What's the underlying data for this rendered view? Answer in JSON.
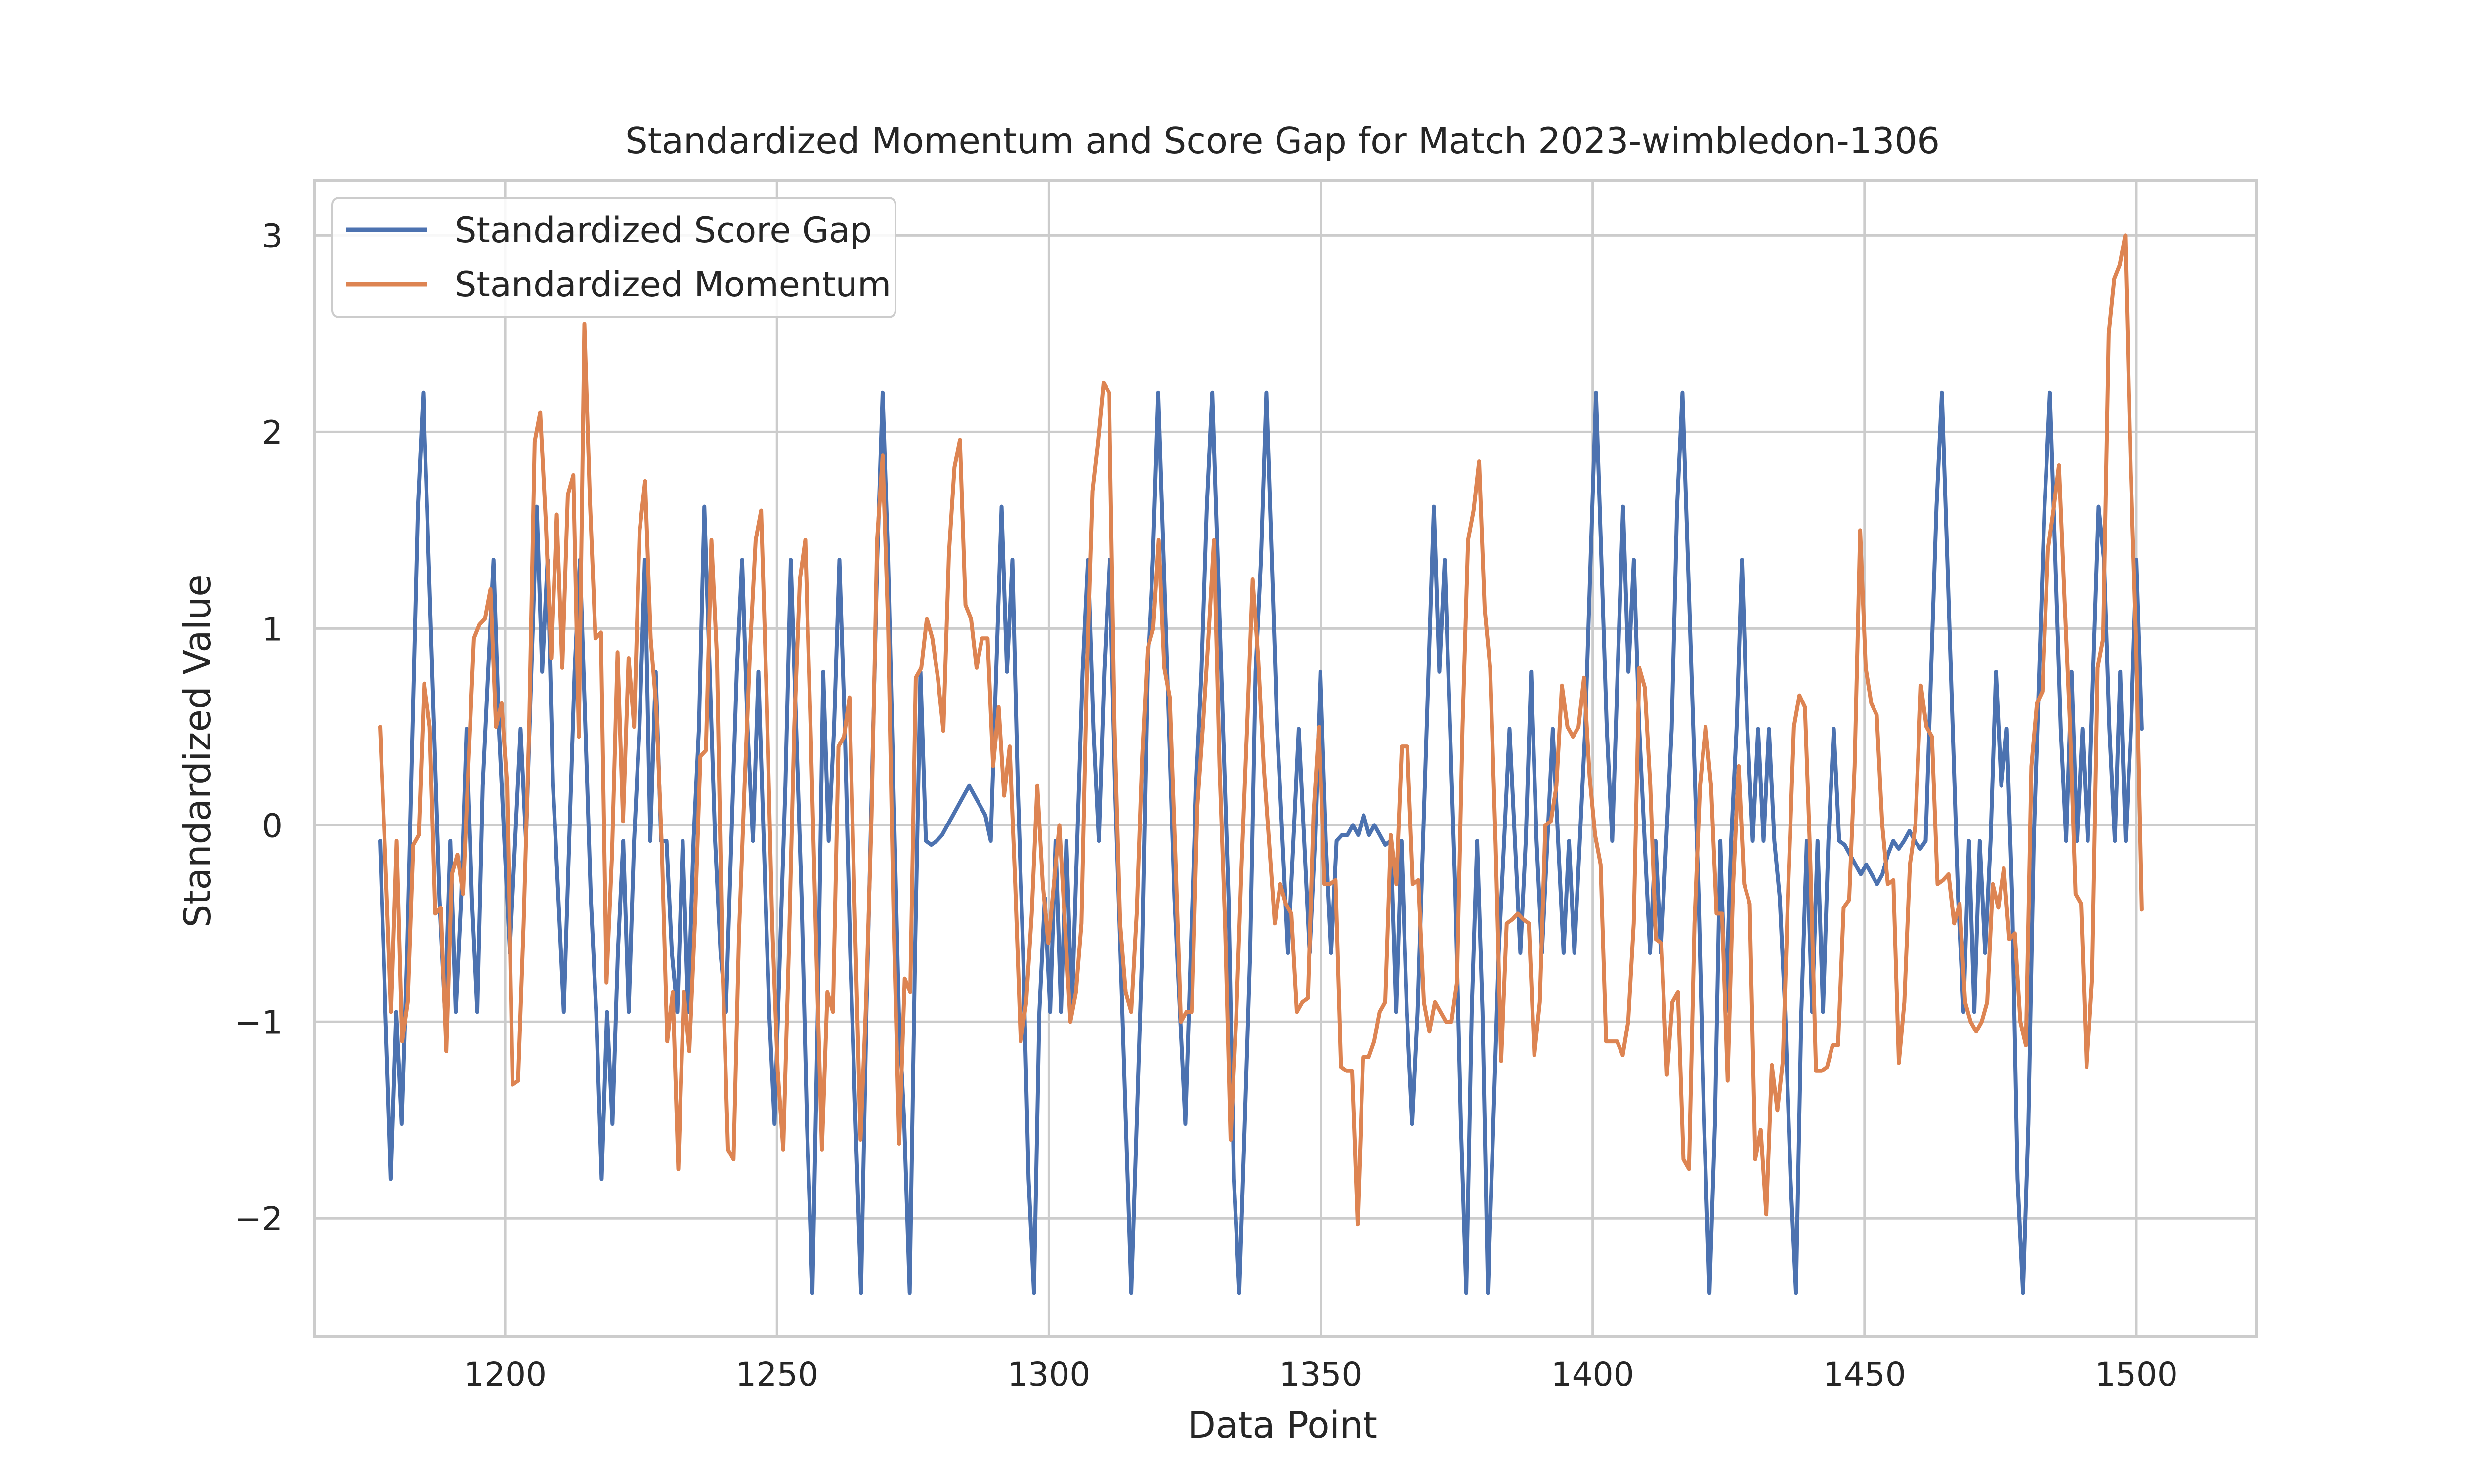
{
  "chart_data": {
    "type": "line",
    "title": "Standardized Momentum and Score Gap for Match 2023-wimbledon-1306",
    "xlabel": "Data Point",
    "ylabel": "Standardized Value",
    "xlim": [
      1165,
      1522
    ],
    "ylim": [
      -2.6,
      3.28
    ],
    "xticks": [
      1200,
      1250,
      1300,
      1350,
      1400,
      1450,
      1500
    ],
    "xtick_labels": [
      "1200",
      "1250",
      "1300",
      "1350",
      "1400",
      "1450",
      "1500"
    ],
    "yticks": [
      -2,
      -1,
      0,
      1,
      2,
      3
    ],
    "ytick_labels": [
      "−2",
      "−1",
      "0",
      "1",
      "2",
      "3"
    ],
    "grid": true,
    "legend_position": "top-left",
    "x_start": 1177,
    "x_end": 1501,
    "series": [
      {
        "name": "Standardized Score Gap",
        "color": "#4c72b0",
        "values": [
          -0.08,
          -0.95,
          -1.8,
          -0.95,
          -1.52,
          -0.65,
          0.49,
          1.62,
          2.2,
          1.35,
          0.49,
          -0.37,
          -0.95,
          -0.08,
          -0.95,
          -0.37,
          0.49,
          -0.37,
          -0.95,
          0.2,
          0.78,
          1.35,
          0.49,
          -0.08,
          -0.65,
          -0.08,
          0.49,
          -0.08,
          0.78,
          1.62,
          0.78,
          1.35,
          0.2,
          -0.37,
          -0.95,
          -0.08,
          0.78,
          1.35,
          0.49,
          -0.37,
          -0.95,
          -1.8,
          -0.95,
          -1.52,
          -0.65,
          -0.08,
          -0.95,
          -0.08,
          0.49,
          1.35,
          -0.08,
          0.78,
          -0.08,
          -0.08,
          -0.65,
          -0.95,
          -0.08,
          -0.95,
          -0.08,
          0.49,
          1.62,
          0.78,
          -0.08,
          -0.65,
          -0.95,
          -0.08,
          0.78,
          1.35,
          0.49,
          -0.08,
          0.78,
          -0.08,
          -0.95,
          -1.52,
          -0.65,
          0.2,
          1.35,
          0.49,
          -0.37,
          -1.52,
          -2.38,
          -0.95,
          0.78,
          -0.08,
          0.49,
          1.35,
          0.49,
          -0.65,
          -1.52,
          -2.38,
          -0.95,
          0.2,
          1.35,
          2.2,
          1.35,
          0.2,
          -0.95,
          -1.52,
          -2.38,
          -0.65,
          0.78,
          -0.08,
          -0.1,
          -0.08,
          -0.05,
          0.0,
          0.05,
          0.1,
          0.15,
          0.2,
          0.15,
          0.1,
          0.05,
          -0.08,
          0.78,
          1.62,
          0.78,
          1.35,
          0.2,
          -0.65,
          -1.8,
          -2.38,
          -0.95,
          -0.37,
          -0.95,
          -0.08,
          -0.95,
          -0.08,
          -0.95,
          -0.08,
          0.78,
          1.35,
          0.49,
          -0.08,
          0.78,
          1.35,
          0.2,
          -0.65,
          -1.52,
          -2.38,
          -1.52,
          -0.65,
          0.78,
          1.35,
          2.2,
          1.35,
          0.49,
          -0.37,
          -0.95,
          -1.52,
          -0.65,
          0.2,
          0.78,
          1.62,
          2.2,
          1.35,
          0.49,
          -0.37,
          -1.8,
          -2.38,
          -1.52,
          -0.65,
          0.78,
          1.35,
          2.2,
          1.35,
          0.49,
          -0.08,
          -0.65,
          -0.08,
          0.49,
          -0.08,
          -0.65,
          -0.08,
          0.78,
          -0.08,
          -0.65,
          -0.08,
          -0.05,
          -0.05,
          0.0,
          -0.05,
          0.05,
          -0.05,
          0.0,
          -0.05,
          -0.1,
          -0.08,
          -0.95,
          -0.08,
          -0.95,
          -1.52,
          -0.95,
          -0.08,
          0.78,
          1.62,
          0.78,
          1.35,
          0.49,
          -0.37,
          -1.52,
          -2.38,
          -0.95,
          -0.08,
          -0.95,
          -2.38,
          -1.52,
          -0.65,
          -0.08,
          0.49,
          -0.08,
          -0.65,
          -0.08,
          0.78,
          -0.08,
          -0.65,
          -0.08,
          0.49,
          -0.08,
          -0.65,
          -0.08,
          -0.65,
          -0.08,
          0.49,
          1.35,
          2.2,
          1.35,
          0.49,
          -0.08,
          0.78,
          1.62,
          0.78,
          1.35,
          0.49,
          -0.08,
          -0.65,
          -0.08,
          -0.65,
          -0.08,
          0.49,
          1.62,
          2.2,
          1.35,
          0.49,
          -0.37,
          -1.52,
          -2.38,
          -1.52,
          -0.08,
          -0.95,
          -0.08,
          0.49,
          1.35,
          0.49,
          -0.08,
          0.49,
          -0.08,
          0.49,
          -0.08,
          -0.37,
          -0.95,
          -1.8,
          -2.38,
          -0.95,
          -0.08,
          -0.95,
          -0.08,
          -0.95,
          -0.08,
          0.49,
          -0.08,
          -0.1,
          -0.15,
          -0.2,
          -0.25,
          -0.2,
          -0.25,
          -0.3,
          -0.25,
          -0.15,
          -0.08,
          -0.12,
          -0.08,
          -0.03,
          -0.08,
          -0.12,
          -0.08,
          0.78,
          1.62,
          2.2,
          1.35,
          0.49,
          -0.37,
          -0.95,
          -0.08,
          -0.95,
          -0.08,
          -0.65,
          -0.08,
          0.78,
          0.2,
          0.49,
          -0.37,
          -1.8,
          -2.38,
          -1.52,
          -0.08,
          0.78,
          1.62,
          2.2,
          1.35,
          0.49,
          -0.08,
          0.78,
          -0.08,
          0.49,
          -0.08,
          0.78,
          1.62,
          1.35,
          0.49,
          -0.08,
          0.78,
          -0.08,
          0.49,
          1.35,
          0.49
        ]
      },
      {
        "name": "Standardized Momentum",
        "color": "#dd8452",
        "values": [
          0.5,
          -0.2,
          -0.95,
          -0.08,
          -1.1,
          -0.9,
          -0.1,
          -0.05,
          0.72,
          0.5,
          -0.45,
          -0.42,
          -1.15,
          -0.25,
          -0.15,
          -0.35,
          0.3,
          0.95,
          1.02,
          1.05,
          1.2,
          0.5,
          0.62,
          0.2,
          -1.32,
          -1.3,
          -0.5,
          0.5,
          1.95,
          2.1,
          1.55,
          0.85,
          1.58,
          0.8,
          1.68,
          1.78,
          0.45,
          2.55,
          1.65,
          0.95,
          0.98,
          -0.8,
          -0.15,
          0.88,
          0.02,
          0.85,
          0.5,
          1.5,
          1.75,
          0.95,
          0.6,
          -0.1,
          -1.1,
          -0.85,
          -1.75,
          -0.85,
          -1.15,
          -0.5,
          0.35,
          0.38,
          1.45,
          0.85,
          -0.7,
          -1.65,
          -1.7,
          -0.55,
          0.2,
          0.9,
          1.45,
          1.6,
          0.65,
          -0.5,
          -1.25,
          -1.65,
          -0.65,
          0.5,
          1.25,
          1.45,
          0.45,
          -0.65,
          -1.65,
          -0.85,
          -0.95,
          0.4,
          0.45,
          0.65,
          -0.5,
          -1.6,
          -0.9,
          0.05,
          1.45,
          1.88,
          1.0,
          -0.5,
          -1.62,
          -0.78,
          -0.85,
          0.75,
          0.8,
          1.05,
          0.95,
          0.75,
          0.48,
          1.38,
          1.82,
          1.96,
          1.12,
          1.05,
          0.8,
          0.95,
          0.95,
          0.3,
          0.6,
          0.15,
          0.4,
          -0.3,
          -1.1,
          -0.9,
          -0.45,
          0.2,
          -0.3,
          -0.6,
          -0.3,
          0.0,
          -0.5,
          -1.0,
          -0.85,
          -0.5,
          0.8,
          1.7,
          1.95,
          2.25,
          2.2,
          0.5,
          -0.5,
          -0.85,
          -0.95,
          -0.45,
          0.35,
          0.9,
          1.0,
          1.45,
          0.8,
          0.65,
          -0.15,
          -1.0,
          -0.95,
          -0.95,
          0.1,
          0.5,
          0.95,
          1.45,
          0.3,
          -0.5,
          -1.6,
          -1.0,
          -0.2,
          0.5,
          1.25,
          0.85,
          0.3,
          -0.1,
          -0.5,
          -0.3,
          -0.4,
          -0.45,
          -0.95,
          -0.9,
          -0.88,
          0.05,
          0.5,
          -0.3,
          -0.3,
          -0.28,
          -1.23,
          -1.25,
          -1.25,
          -2.03,
          -1.18,
          -1.18,
          -1.1,
          -0.95,
          -0.9,
          -0.05,
          -0.3,
          0.4,
          0.4,
          -0.3,
          -0.28,
          -0.9,
          -1.05,
          -0.9,
          -0.95,
          -1.0,
          -1.0,
          -0.8,
          0.5,
          1.45,
          1.6,
          1.85,
          1.1,
          0.8,
          -0.1,
          -1.2,
          -0.5,
          -0.48,
          -0.45,
          -0.48,
          -0.5,
          -1.17,
          -0.9,
          0.0,
          0.02,
          0.2,
          0.71,
          0.5,
          0.45,
          0.5,
          0.75,
          0.25,
          -0.05,
          -0.2,
          -1.1,
          -1.1,
          -1.1,
          -1.17,
          -1.0,
          -0.5,
          0.8,
          0.7,
          0.2,
          -0.58,
          -0.6,
          -1.27,
          -0.9,
          -0.85,
          -1.7,
          -1.75,
          -0.5,
          0.2,
          0.5,
          0.2,
          -0.45,
          -0.45,
          -1.3,
          -0.3,
          0.3,
          -0.3,
          -0.4,
          -1.7,
          -1.55,
          -1.98,
          -1.22,
          -1.45,
          -1.2,
          -0.3,
          0.5,
          0.66,
          0.6,
          -0.2,
          -1.25,
          -1.25,
          -1.23,
          -1.12,
          -1.12,
          -0.42,
          -0.38,
          0.3,
          1.5,
          0.8,
          0.62,
          0.56,
          0.0,
          -0.3,
          -0.28,
          -1.21,
          -0.9,
          -0.2,
          0.0,
          0.71,
          0.5,
          0.45,
          -0.3,
          -0.28,
          -0.25,
          -0.5,
          -0.4,
          -0.9,
          -1.0,
          -1.05,
          -1.0,
          -0.9,
          -0.3,
          -0.42,
          -0.22,
          -0.58,
          -0.55,
          -1.0,
          -1.12,
          0.3,
          0.62,
          0.68,
          1.4,
          1.6,
          1.83,
          1.15,
          0.5,
          -0.35,
          -0.4,
          -1.23,
          -0.78,
          0.8,
          0.95,
          2.5,
          2.78,
          2.85,
          3.0,
          1.8,
          0.9,
          -0.43
        ]
      }
    ]
  }
}
